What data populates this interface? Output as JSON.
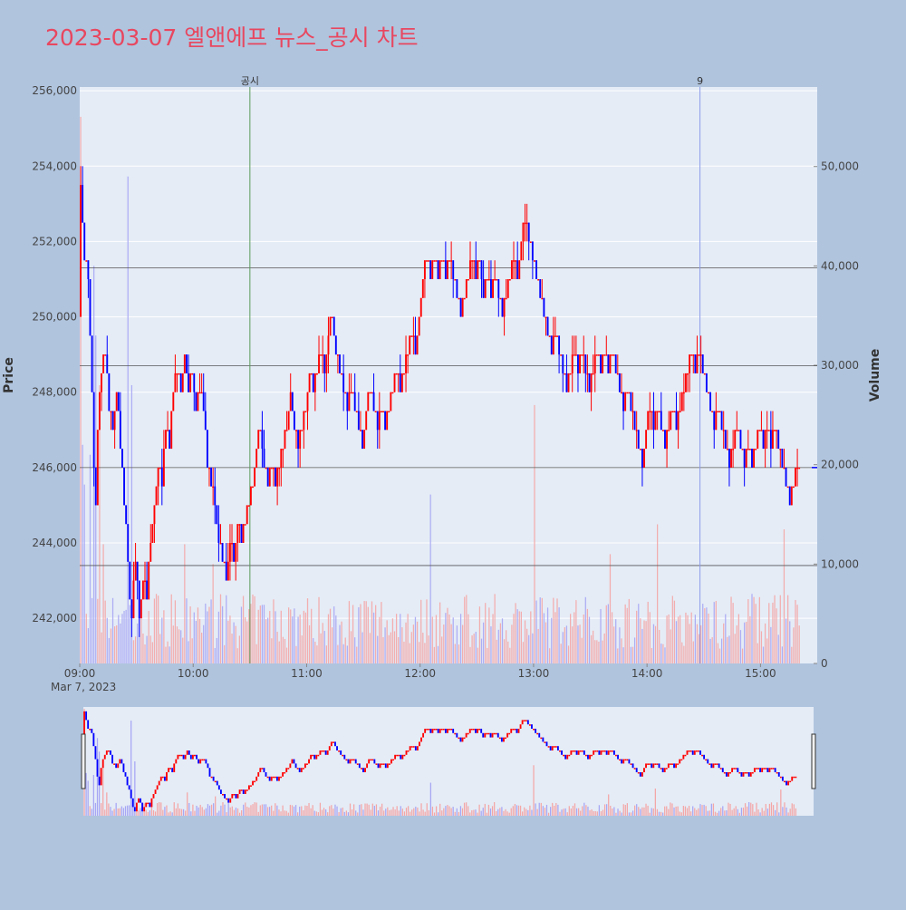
{
  "title": "2023-03-07 엘앤에프 뉴스_공시 차트",
  "colors": {
    "page_bg": "#b0c4de",
    "plot_bg": "#e5ecf6",
    "title": "#e8475f",
    "up": "#ff0000",
    "down": "#0000ff",
    "volume_up": "#f4a6a6",
    "volume_down": "#a6a6f4",
    "grid": "#ffffff",
    "hline": "#555555",
    "event_line_1": "#5a9a5a",
    "event_line_2": "#8c9ce8"
  },
  "chart_data": {
    "type": "candlestick",
    "date_label": "Mar 7, 2023",
    "ylabel": "Price",
    "y2label": "Volume",
    "price_range": [
      240800,
      256100
    ],
    "price_ticks": [
      "242,000",
      "244,000",
      "246,000",
      "248,000",
      "250,000",
      "252,000",
      "254,000",
      "256,000"
    ],
    "price_tick_values": [
      242000,
      244000,
      246000,
      248000,
      250000,
      252000,
      254000,
      256000
    ],
    "volume_range": [
      0,
      58000
    ],
    "volume_ticks": [
      "0",
      "10,000",
      "20,000",
      "30,000",
      "40,000",
      "50,000"
    ],
    "volume_tick_values": [
      0,
      10000,
      20000,
      30000,
      40000,
      50000
    ],
    "x_ticks": [
      "09:00",
      "10:00",
      "11:00",
      "12:00",
      "13:00",
      "14:00",
      "15:00"
    ],
    "x_tick_minutes": [
      0,
      60,
      120,
      180,
      240,
      300,
      360
    ],
    "x_range_minutes": [
      0,
      390
    ],
    "horizontal_levels": [
      243400,
      246000,
      248700,
      251300
    ],
    "events": [
      {
        "label": "공시",
        "minute": 90
      },
      {
        "label": "9",
        "minute": 328
      }
    ],
    "price_path": [
      [
        0,
        250000
      ],
      [
        1,
        253500
      ],
      [
        3,
        251500
      ],
      [
        5,
        251000
      ],
      [
        7,
        248000
      ],
      [
        8,
        246000
      ],
      [
        9,
        245000
      ],
      [
        10,
        247000
      ],
      [
        12,
        248500
      ],
      [
        14,
        249000
      ],
      [
        16,
        247500
      ],
      [
        18,
        247000
      ],
      [
        20,
        248000
      ],
      [
        22,
        246500
      ],
      [
        24,
        245000
      ],
      [
        26,
        243500
      ],
      [
        27,
        242500
      ],
      [
        28,
        242000
      ],
      [
        30,
        243500
      ],
      [
        32,
        242000
      ],
      [
        34,
        243000
      ],
      [
        36,
        242500
      ],
      [
        38,
        244000
      ],
      [
        40,
        245000
      ],
      [
        42,
        246000
      ],
      [
        44,
        245500
      ],
      [
        46,
        247000
      ],
      [
        48,
        246500
      ],
      [
        50,
        248000
      ],
      [
        52,
        248500
      ],
      [
        54,
        248000
      ],
      [
        56,
        249000
      ],
      [
        58,
        248000
      ],
      [
        60,
        248500
      ],
      [
        62,
        247500
      ],
      [
        64,
        248000
      ],
      [
        66,
        247500
      ],
      [
        68,
        246000
      ],
      [
        70,
        245500
      ],
      [
        72,
        245000
      ],
      [
        74,
        244000
      ],
      [
        76,
        243500
      ],
      [
        78,
        243000
      ],
      [
        80,
        244000
      ],
      [
        82,
        243500
      ],
      [
        84,
        244500
      ],
      [
        86,
        244000
      ],
      [
        88,
        244500
      ],
      [
        90,
        245000
      ],
      [
        92,
        245500
      ],
      [
        94,
        246500
      ],
      [
        96,
        247000
      ],
      [
        98,
        246000
      ],
      [
        100,
        245500
      ],
      [
        102,
        246000
      ],
      [
        104,
        245500
      ],
      [
        106,
        246000
      ],
      [
        108,
        246500
      ],
      [
        110,
        247000
      ],
      [
        112,
        248000
      ],
      [
        114,
        247000
      ],
      [
        116,
        246500
      ],
      [
        118,
        247000
      ],
      [
        120,
        247500
      ],
      [
        122,
        248500
      ],
      [
        124,
        248000
      ],
      [
        126,
        248500
      ],
      [
        128,
        249000
      ],
      [
        130,
        248500
      ],
      [
        132,
        249500
      ],
      [
        134,
        250000
      ],
      [
        136,
        249000
      ],
      [
        138,
        248500
      ],
      [
        140,
        248000
      ],
      [
        142,
        247500
      ],
      [
        144,
        248000
      ],
      [
        146,
        247500
      ],
      [
        148,
        247000
      ],
      [
        150,
        246500
      ],
      [
        152,
        247500
      ],
      [
        154,
        248000
      ],
      [
        156,
        247500
      ],
      [
        158,
        247000
      ],
      [
        160,
        247500
      ],
      [
        162,
        247000
      ],
      [
        164,
        247500
      ],
      [
        166,
        248000
      ],
      [
        168,
        248500
      ],
      [
        170,
        248000
      ],
      [
        172,
        248500
      ],
      [
        174,
        249000
      ],
      [
        176,
        249500
      ],
      [
        178,
        249000
      ],
      [
        180,
        250000
      ],
      [
        182,
        251000
      ],
      [
        184,
        251500
      ],
      [
        186,
        251000
      ],
      [
        188,
        251500
      ],
      [
        190,
        251000
      ],
      [
        192,
        251500
      ],
      [
        194,
        251000
      ],
      [
        196,
        251500
      ],
      [
        198,
        251000
      ],
      [
        200,
        250500
      ],
      [
        202,
        250000
      ],
      [
        204,
        250500
      ],
      [
        206,
        251000
      ],
      [
        208,
        251500
      ],
      [
        210,
        251000
      ],
      [
        212,
        251500
      ],
      [
        214,
        250500
      ],
      [
        216,
        251000
      ],
      [
        218,
        250500
      ],
      [
        220,
        251000
      ],
      [
        222,
        250500
      ],
      [
        224,
        250000
      ],
      [
        226,
        250500
      ],
      [
        228,
        251000
      ],
      [
        230,
        251500
      ],
      [
        232,
        251000
      ],
      [
        234,
        252000
      ],
      [
        236,
        252500
      ],
      [
        238,
        252000
      ],
      [
        240,
        251500
      ],
      [
        242,
        251000
      ],
      [
        244,
        250500
      ],
      [
        246,
        250000
      ],
      [
        248,
        249500
      ],
      [
        250,
        249000
      ],
      [
        252,
        249500
      ],
      [
        254,
        249000
      ],
      [
        256,
        248500
      ],
      [
        258,
        248000
      ],
      [
        260,
        248500
      ],
      [
        262,
        249000
      ],
      [
        264,
        248500
      ],
      [
        266,
        249000
      ],
      [
        268,
        248500
      ],
      [
        270,
        248000
      ],
      [
        272,
        248500
      ],
      [
        274,
        249000
      ],
      [
        276,
        248500
      ],
      [
        278,
        249000
      ],
      [
        280,
        248500
      ],
      [
        282,
        249000
      ],
      [
        284,
        248500
      ],
      [
        286,
        248000
      ],
      [
        288,
        247500
      ],
      [
        290,
        248000
      ],
      [
        292,
        247500
      ],
      [
        294,
        247000
      ],
      [
        296,
        246500
      ],
      [
        298,
        246000
      ],
      [
        300,
        247000
      ],
      [
        302,
        247500
      ],
      [
        304,
        247000
      ],
      [
        306,
        247500
      ],
      [
        308,
        247000
      ],
      [
        310,
        246500
      ],
      [
        312,
        247000
      ],
      [
        314,
        247500
      ],
      [
        316,
        247000
      ],
      [
        318,
        247500
      ],
      [
        320,
        248000
      ],
      [
        322,
        248500
      ],
      [
        324,
        249000
      ],
      [
        326,
        248500
      ],
      [
        328,
        249000
      ],
      [
        330,
        248500
      ],
      [
        332,
        248000
      ],
      [
        334,
        247500
      ],
      [
        336,
        247000
      ],
      [
        338,
        247500
      ],
      [
        340,
        247000
      ],
      [
        342,
        246500
      ],
      [
        344,
        246000
      ],
      [
        346,
        246500
      ],
      [
        348,
        247000
      ],
      [
        350,
        246500
      ],
      [
        352,
        246000
      ],
      [
        354,
        246500
      ],
      [
        356,
        246000
      ],
      [
        358,
        246500
      ],
      [
        360,
        247000
      ],
      [
        362,
        246500
      ],
      [
        364,
        247000
      ],
      [
        366,
        246500
      ],
      [
        368,
        247000
      ],
      [
        370,
        246500
      ],
      [
        372,
        246000
      ],
      [
        374,
        245500
      ],
      [
        376,
        245000
      ],
      [
        378,
        245500
      ],
      [
        380,
        246000
      ]
    ],
    "volume_spikes": [
      [
        0,
        55000
      ],
      [
        1,
        22000
      ],
      [
        2,
        18000
      ],
      [
        5,
        21000
      ],
      [
        7,
        40000
      ],
      [
        8,
        33000
      ],
      [
        10,
        28000
      ],
      [
        12,
        12000
      ],
      [
        25,
        49000
      ],
      [
        27,
        28000
      ],
      [
        40,
        7000
      ],
      [
        55,
        12000
      ],
      [
        70,
        10000
      ],
      [
        90,
        6000
      ],
      [
        185,
        17000
      ],
      [
        240,
        26000
      ],
      [
        280,
        11000
      ],
      [
        305,
        14000
      ],
      [
        355,
        7000
      ],
      [
        372,
        13500
      ]
    ],
    "navigator": {
      "price_range": [
        241500,
        254000
      ],
      "volume_range": [
        0,
        56000
      ]
    }
  }
}
